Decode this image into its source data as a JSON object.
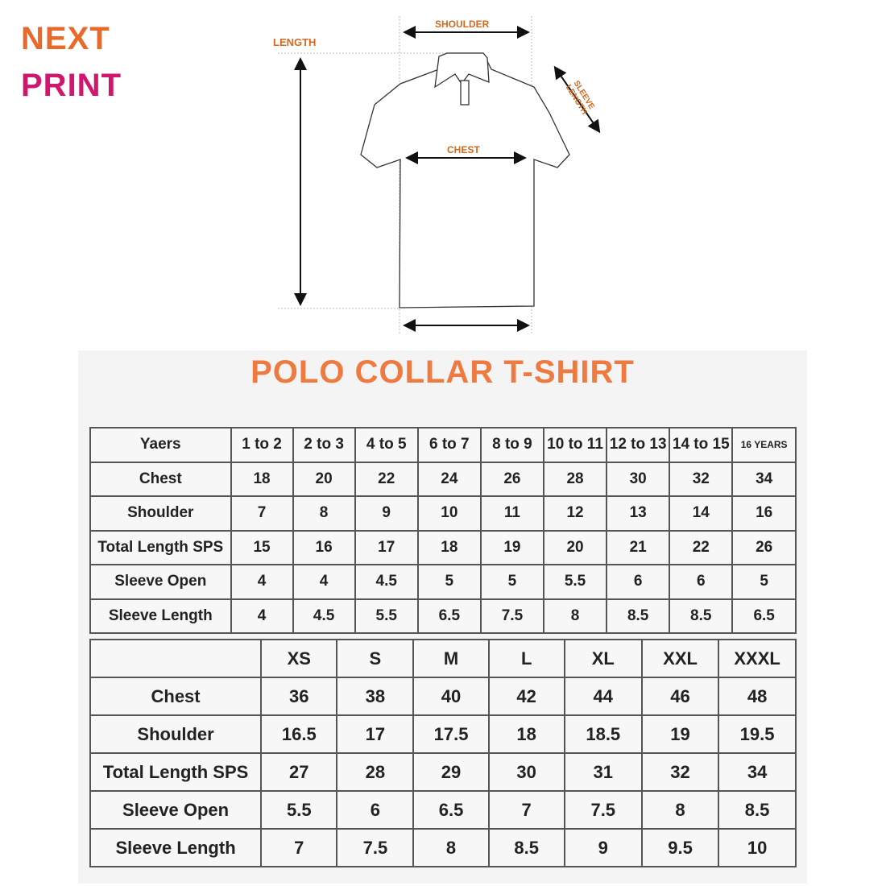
{
  "brand": {
    "line1": "NEXT",
    "line2": "PRINT",
    "colors": {
      "orange": "#e8692a",
      "magenta": "#d0176e"
    }
  },
  "diagram": {
    "shoulder": "SHOULDER",
    "length": "LENGTH",
    "sleeve_length": "SLEEVE LENGTH",
    "chest": "CHEST"
  },
  "title": "POLO COLLAR T-SHIRT",
  "kids_table": {
    "header": [
      "Yaers",
      "1 to 2",
      "2 to 3",
      "4 to 5",
      "6 to 7",
      "8 to 9",
      "10 to 11",
      "12 to 13",
      "14 to 15",
      "16 YEARS"
    ],
    "rows": [
      [
        "Chest",
        "18",
        "20",
        "22",
        "24",
        "26",
        "28",
        "30",
        "32",
        "34"
      ],
      [
        "Shoulder",
        "7",
        "8",
        "9",
        "10",
        "11",
        "12",
        "13",
        "14",
        "16"
      ],
      [
        "Total Length SPS",
        "15",
        "16",
        "17",
        "18",
        "19",
        "20",
        "21",
        "22",
        "26"
      ],
      [
        "Sleeve Open",
        "4",
        "4",
        "4.5",
        "5",
        "5",
        "5.5",
        "6",
        "6",
        "5"
      ],
      [
        "Sleeve Length",
        "4",
        "4.5",
        "5.5",
        "6.5",
        "7.5",
        "8",
        "8.5",
        "8.5",
        "6.5"
      ]
    ]
  },
  "adult_table": {
    "header": [
      "",
      "XS",
      "S",
      "M",
      "L",
      "XL",
      "XXL",
      "XXXL"
    ],
    "rows": [
      [
        "Chest",
        "36",
        "38",
        "40",
        "42",
        "44",
        "46",
        "48"
      ],
      [
        "Shoulder",
        "16.5",
        "17",
        "17.5",
        "18",
        "18.5",
        "19",
        "19.5"
      ],
      [
        "Total Length SPS",
        "27",
        "28",
        "29",
        "30",
        "31",
        "32",
        "34"
      ],
      [
        "Sleeve Open",
        "5.5",
        "6",
        "6.5",
        "7",
        "7.5",
        "8",
        "8.5"
      ],
      [
        "Sleeve Length",
        "7",
        "7.5",
        "8",
        "8.5",
        "9",
        "9.5",
        "10"
      ]
    ]
  }
}
